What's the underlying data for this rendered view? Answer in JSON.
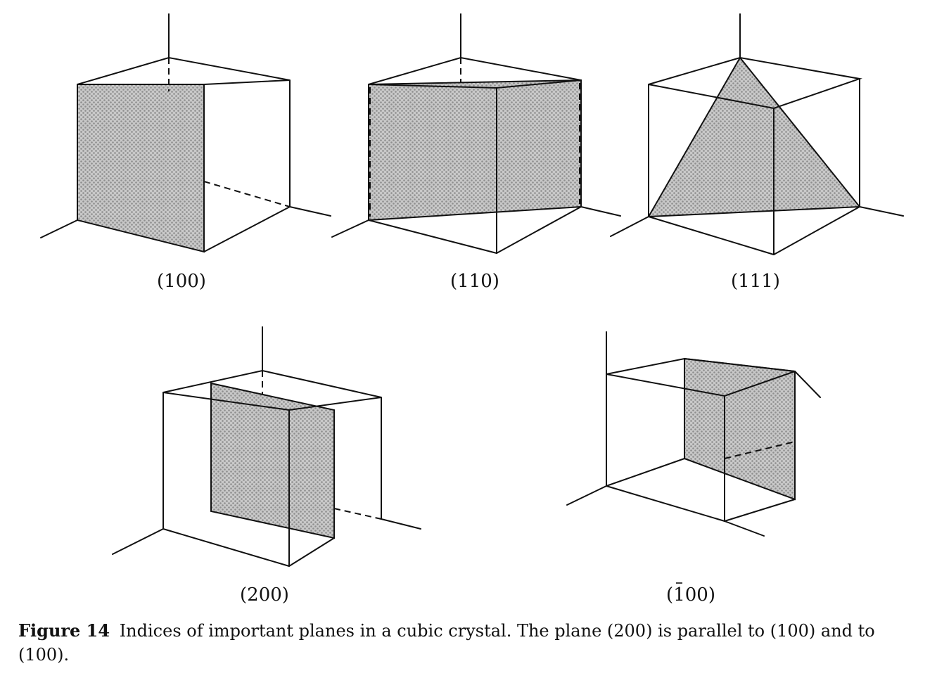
{
  "figure": {
    "panels": [
      {
        "id": "p100",
        "label": "(100)"
      },
      {
        "id": "p110",
        "label": "(110)"
      },
      {
        "id": "p111",
        "label": "(111)"
      },
      {
        "id": "p200",
        "label": "(200)"
      },
      {
        "id": "pbar100",
        "label_open": "(",
        "label_bar": "1",
        "label_rest": "00)"
      }
    ]
  },
  "caption": {
    "figure_number": "Figure 14",
    "text": "Indices of important planes in a cubic crystal. The plane (200) is parallel to (100) and to (100)."
  },
  "colors": {
    "ink": "#111111",
    "plane_fill": "#bdbdbd",
    "background": "#ffffff"
  }
}
